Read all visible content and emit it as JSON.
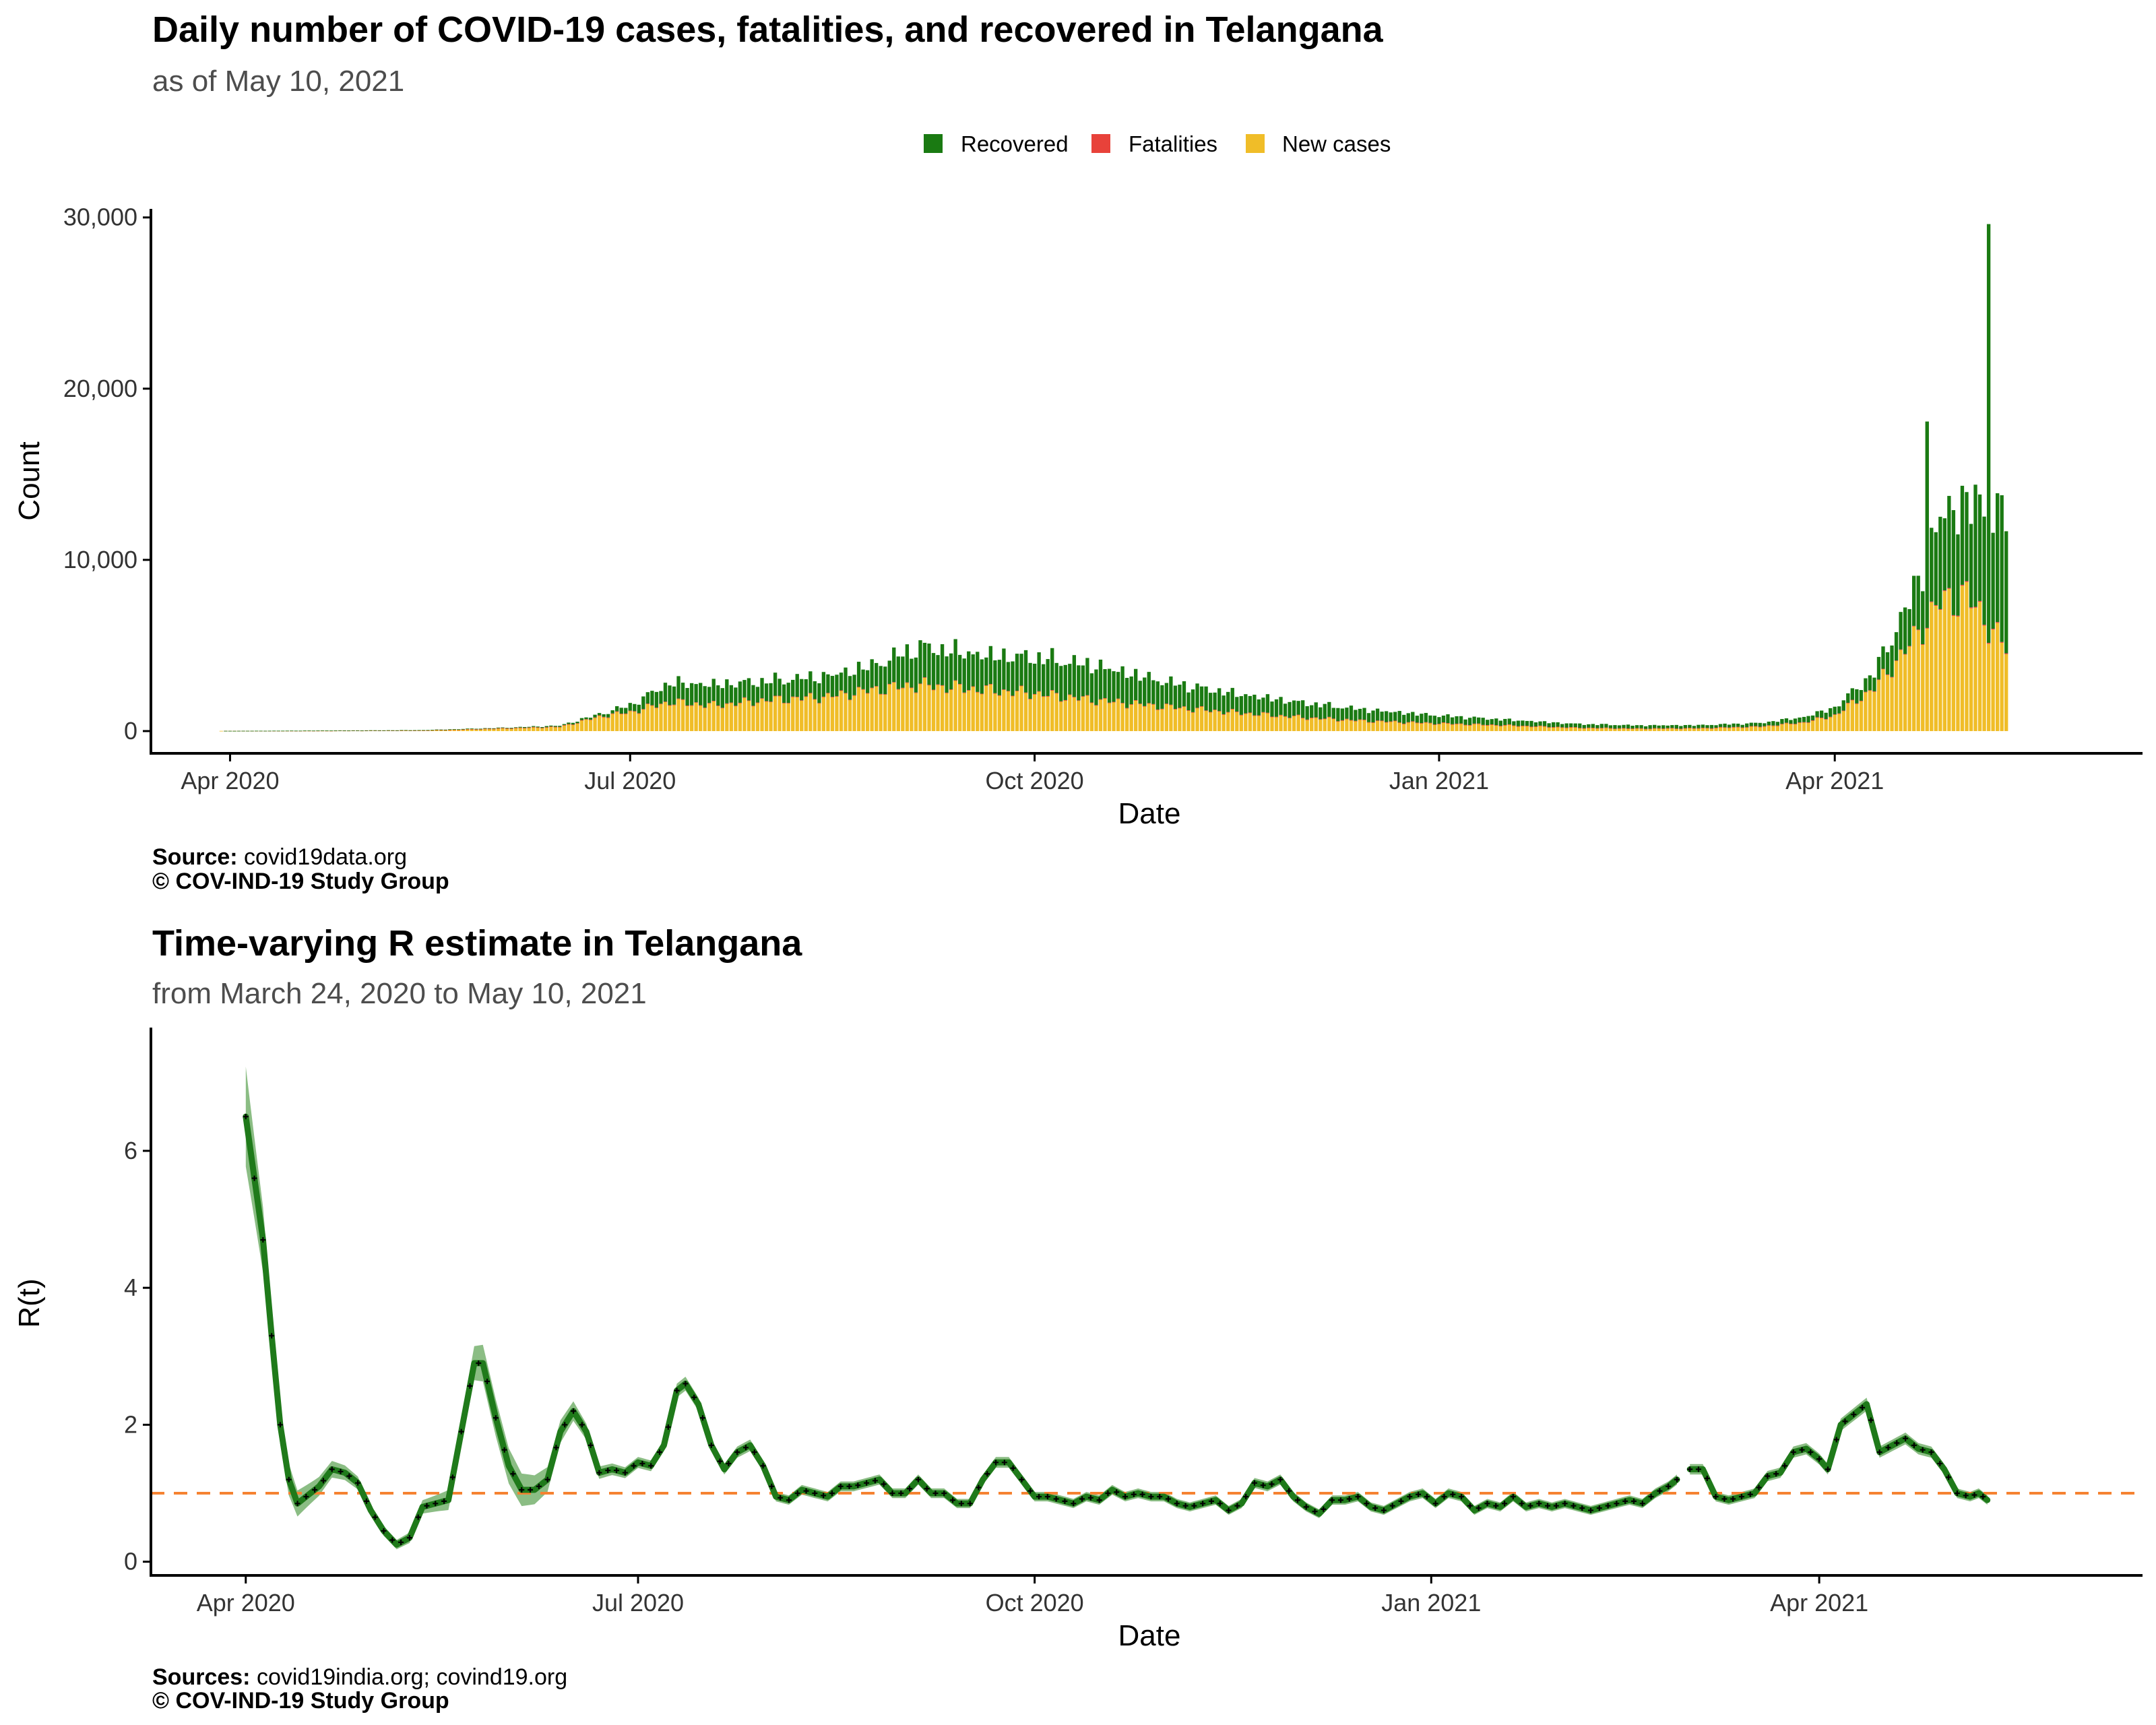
{
  "colors": {
    "recovered": "#1a7a12",
    "fatalities": "#e8423a",
    "new_cases": "#f0bd28",
    "r_line": "#1f7a1a",
    "r_band": "#5aa150",
    "r_marker": "#000000",
    "reference_line": "#f58231"
  },
  "chart_data": [
    {
      "type": "bar",
      "stacked": true,
      "title": "Daily number of COVID-19 cases, fatalities, and recovered in Telangana",
      "subtitle": "as of May 10, 2021",
      "xlabel": "Date",
      "ylabel": "Count",
      "x_range": [
        "2020-03-14",
        "2021-06-10"
      ],
      "x_ticks": [
        {
          "date": "2020-04-01",
          "label": "Apr 2020"
        },
        {
          "date": "2020-07-01",
          "label": "Jul 2020"
        },
        {
          "date": "2020-10-01",
          "label": "Oct 2020"
        },
        {
          "date": "2021-01-01",
          "label": "Jan 2021"
        },
        {
          "date": "2021-04-01",
          "label": "Apr 2021"
        }
      ],
      "ylim": [
        -1300,
        30500
      ],
      "y_ticks": [
        {
          "value": 0,
          "label": "0"
        },
        {
          "value": 10000,
          "label": "10,000"
        },
        {
          "value": 20000,
          "label": "20,000"
        },
        {
          "value": 30000,
          "label": "30,000"
        }
      ],
      "legend_position": "top-center",
      "legend": [
        "Recovered",
        "Fatalities",
        "New cases"
      ],
      "series_keys": [
        "new_cases",
        "fatalities",
        "recovered"
      ],
      "x_start": "2020-03-30",
      "x_end": "2021-05-10",
      "series": [
        {
          "name": "New cases",
          "key": "new_cases",
          "keyframes": [
            [
              "2020-03-30",
              10
            ],
            [
              "2020-04-20",
              20
            ],
            [
              "2020-05-15",
              40
            ],
            [
              "2020-06-01",
              150
            ],
            [
              "2020-06-15",
              250
            ],
            [
              "2020-06-25",
              900
            ],
            [
              "2020-07-01",
              1100
            ],
            [
              "2020-07-10",
              1700
            ],
            [
              "2020-07-20",
              1500
            ],
            [
              "2020-08-01",
              1800
            ],
            [
              "2020-08-15",
              2000
            ],
            [
              "2020-08-25",
              2400
            ],
            [
              "2020-09-05",
              2700
            ],
            [
              "2020-09-20",
              2400
            ],
            [
              "2020-10-01",
              2200
            ],
            [
              "2020-10-15",
              1800
            ],
            [
              "2020-11-01",
              1400
            ],
            [
              "2020-11-15",
              1100
            ],
            [
              "2020-12-01",
              800
            ],
            [
              "2020-12-15",
              600
            ],
            [
              "2021-01-01",
              450
            ],
            [
              "2021-01-15",
              350
            ],
            [
              "2021-02-01",
              200
            ],
            [
              "2021-02-15",
              150
            ],
            [
              "2021-03-01",
              170
            ],
            [
              "2021-03-15",
              260
            ],
            [
              "2021-03-25",
              500
            ],
            [
              "2021-04-01",
              900
            ],
            [
              "2021-04-10",
              2500
            ],
            [
              "2021-04-18",
              5000
            ],
            [
              "2021-04-25",
              7500
            ],
            [
              "2021-05-01",
              7900
            ],
            [
              "2021-05-05",
              6500
            ],
            [
              "2021-05-10",
              4800
            ]
          ]
        },
        {
          "name": "Fatalities",
          "key": "fatalities",
          "keyframes": [
            [
              "2020-03-30",
              0
            ],
            [
              "2020-06-01",
              5
            ],
            [
              "2020-07-01",
              10
            ],
            [
              "2020-08-15",
              12
            ],
            [
              "2020-10-01",
              8
            ],
            [
              "2020-12-01",
              4
            ],
            [
              "2021-03-01",
              2
            ],
            [
              "2021-04-15",
              30
            ],
            [
              "2021-05-01",
              55
            ],
            [
              "2021-05-10",
              50
            ]
          ]
        },
        {
          "name": "Recovered",
          "key": "recovered",
          "keyframes": [
            [
              "2020-03-30",
              0
            ],
            [
              "2020-05-15",
              15
            ],
            [
              "2020-06-01",
              30
            ],
            [
              "2020-06-15",
              60
            ],
            [
              "2020-06-25",
              150
            ],
            [
              "2020-07-01",
              400
            ],
            [
              "2020-07-10",
              1100
            ],
            [
              "2020-07-20",
              1200
            ],
            [
              "2020-08-01",
              1100
            ],
            [
              "2020-08-15",
              1200
            ],
            [
              "2020-08-25",
              1400
            ],
            [
              "2020-09-05",
              2200
            ],
            [
              "2020-09-20",
              2000
            ],
            [
              "2020-10-01",
              2100
            ],
            [
              "2020-10-15",
              2000
            ],
            [
              "2020-11-01",
              1400
            ],
            [
              "2020-11-15",
              1100
            ],
            [
              "2020-12-01",
              850
            ],
            [
              "2020-12-15",
              650
            ],
            [
              "2021-01-01",
              450
            ],
            [
              "2021-01-15",
              330
            ],
            [
              "2021-02-01",
              220
            ],
            [
              "2021-02-15",
              180
            ],
            [
              "2021-03-01",
              170
            ],
            [
              "2021-03-15",
              200
            ],
            [
              "2021-03-25",
              300
            ],
            [
              "2021-04-01",
              450
            ],
            [
              "2021-04-10",
              900
            ],
            [
              "2021-04-18",
              2500
            ],
            [
              "2021-04-25",
              5000
            ],
            [
              "2021-05-01",
              5500
            ],
            [
              "2021-05-05",
              6500
            ],
            [
              "2021-05-10",
              7800
            ]
          ]
        }
      ],
      "notable_values": [
        {
          "date": "2021-04-22",
          "total": 16500
        },
        {
          "date": "2021-05-06",
          "total": 28700
        }
      ],
      "caption": {
        "source_label": "Source:",
        "source_text": " covid19data.org",
        "copyright": "© COV-IND-19 Study Group"
      }
    },
    {
      "type": "line",
      "title": "Time-varying R estimate in Telangana",
      "subtitle": "from March 24, 2020 to May 10, 2021",
      "xlabel": "Date",
      "ylabel": "R(t)",
      "x_range": [
        "2020-03-10",
        "2021-06-15"
      ],
      "x_ticks": [
        {
          "date": "2020-04-01",
          "label": "Apr 2020"
        },
        {
          "date": "2020-07-01",
          "label": "Jul 2020"
        },
        {
          "date": "2020-10-01",
          "label": "Oct 2020"
        },
        {
          "date": "2021-01-01",
          "label": "Jan 2021"
        },
        {
          "date": "2021-04-01",
          "label": "Apr 2021"
        }
      ],
      "ylim": [
        -0.2,
        7.8
      ],
      "y_ticks": [
        {
          "value": 0,
          "label": "0"
        },
        {
          "value": 2,
          "label": "2"
        },
        {
          "value": 4,
          "label": "4"
        },
        {
          "value": 6,
          "label": "6"
        }
      ],
      "reference_line": 1,
      "gap": [
        "2021-02-27",
        "2021-03-02"
      ],
      "points": [
        [
          "2020-04-01",
          6.5
        ],
        [
          "2020-04-03",
          5.6
        ],
        [
          "2020-04-05",
          4.7
        ],
        [
          "2020-04-07",
          3.3
        ],
        [
          "2020-04-09",
          2.0
        ],
        [
          "2020-04-11",
          1.2
        ],
        [
          "2020-04-13",
          0.85
        ],
        [
          "2020-04-15",
          0.95
        ],
        [
          "2020-04-18",
          1.1
        ],
        [
          "2020-04-21",
          1.35
        ],
        [
          "2020-04-24",
          1.3
        ],
        [
          "2020-04-27",
          1.15
        ],
        [
          "2020-04-30",
          0.75
        ],
        [
          "2020-05-03",
          0.45
        ],
        [
          "2020-05-06",
          0.25
        ],
        [
          "2020-05-09",
          0.35
        ],
        [
          "2020-05-12",
          0.8
        ],
        [
          "2020-05-15",
          0.85
        ],
        [
          "2020-05-18",
          0.9
        ],
        [
          "2020-05-21",
          1.9
        ],
        [
          "2020-05-24",
          2.9
        ],
        [
          "2020-05-26",
          2.9
        ],
        [
          "2020-05-29",
          2.1
        ],
        [
          "2020-06-01",
          1.4
        ],
        [
          "2020-06-04",
          1.05
        ],
        [
          "2020-06-07",
          1.05
        ],
        [
          "2020-06-10",
          1.2
        ],
        [
          "2020-06-13",
          1.9
        ],
        [
          "2020-06-16",
          2.2
        ],
        [
          "2020-06-19",
          1.9
        ],
        [
          "2020-06-22",
          1.3
        ],
        [
          "2020-06-25",
          1.35
        ],
        [
          "2020-06-28",
          1.3
        ],
        [
          "2020-07-01",
          1.45
        ],
        [
          "2020-07-04",
          1.4
        ],
        [
          "2020-07-07",
          1.7
        ],
        [
          "2020-07-10",
          2.5
        ],
        [
          "2020-07-12",
          2.6
        ],
        [
          "2020-07-15",
          2.3
        ],
        [
          "2020-07-18",
          1.7
        ],
        [
          "2020-07-21",
          1.35
        ],
        [
          "2020-07-24",
          1.6
        ],
        [
          "2020-07-27",
          1.7
        ],
        [
          "2020-07-30",
          1.4
        ],
        [
          "2020-08-02",
          0.95
        ],
        [
          "2020-08-05",
          0.9
        ],
        [
          "2020-08-08",
          1.05
        ],
        [
          "2020-08-11",
          1.0
        ],
        [
          "2020-08-14",
          0.95
        ],
        [
          "2020-08-17",
          1.1
        ],
        [
          "2020-08-20",
          1.1
        ],
        [
          "2020-08-23",
          1.15
        ],
        [
          "2020-08-26",
          1.2
        ],
        [
          "2020-08-29",
          1.0
        ],
        [
          "2020-09-01",
          1.0
        ],
        [
          "2020-09-04",
          1.2
        ],
        [
          "2020-09-07",
          1.0
        ],
        [
          "2020-09-10",
          1.0
        ],
        [
          "2020-09-13",
          0.85
        ],
        [
          "2020-09-16",
          0.85
        ],
        [
          "2020-09-19",
          1.2
        ],
        [
          "2020-09-22",
          1.45
        ],
        [
          "2020-09-25",
          1.45
        ],
        [
          "2020-09-28",
          1.2
        ],
        [
          "2020-10-01",
          0.95
        ],
        [
          "2020-10-04",
          0.95
        ],
        [
          "2020-10-07",
          0.9
        ],
        [
          "2020-10-10",
          0.85
        ],
        [
          "2020-10-13",
          0.95
        ],
        [
          "2020-10-16",
          0.9
        ],
        [
          "2020-10-19",
          1.05
        ],
        [
          "2020-10-22",
          0.95
        ],
        [
          "2020-10-25",
          1.0
        ],
        [
          "2020-10-28",
          0.95
        ],
        [
          "2020-10-31",
          0.95
        ],
        [
          "2020-11-03",
          0.85
        ],
        [
          "2020-11-06",
          0.8
        ],
        [
          "2020-11-09",
          0.85
        ],
        [
          "2020-11-12",
          0.9
        ],
        [
          "2020-11-15",
          0.75
        ],
        [
          "2020-11-18",
          0.85
        ],
        [
          "2020-11-21",
          1.15
        ],
        [
          "2020-11-24",
          1.1
        ],
        [
          "2020-11-27",
          1.2
        ],
        [
          "2020-11-30",
          0.95
        ],
        [
          "2020-12-03",
          0.8
        ],
        [
          "2020-12-06",
          0.7
        ],
        [
          "2020-12-09",
          0.9
        ],
        [
          "2020-12-12",
          0.9
        ],
        [
          "2020-12-15",
          0.95
        ],
        [
          "2020-12-18",
          0.8
        ],
        [
          "2020-12-21",
          0.75
        ],
        [
          "2020-12-24",
          0.85
        ],
        [
          "2020-12-27",
          0.95
        ],
        [
          "2020-12-30",
          1.0
        ],
        [
          "2021-01-02",
          0.85
        ],
        [
          "2021-01-05",
          1.0
        ],
        [
          "2021-01-08",
          0.95
        ],
        [
          "2021-01-11",
          0.75
        ],
        [
          "2021-01-14",
          0.85
        ],
        [
          "2021-01-17",
          0.8
        ],
        [
          "2021-01-20",
          0.95
        ],
        [
          "2021-01-23",
          0.8
        ],
        [
          "2021-01-26",
          0.85
        ],
        [
          "2021-01-29",
          0.8
        ],
        [
          "2021-02-01",
          0.85
        ],
        [
          "2021-02-04",
          0.8
        ],
        [
          "2021-02-07",
          0.75
        ],
        [
          "2021-02-10",
          0.8
        ],
        [
          "2021-02-13",
          0.85
        ],
        [
          "2021-02-16",
          0.9
        ],
        [
          "2021-02-19",
          0.85
        ],
        [
          "2021-02-22",
          1.0
        ],
        [
          "2021-02-25",
          1.1
        ],
        [
          "2021-02-27",
          1.2
        ],
        [
          "2021-03-02",
          1.35
        ],
        [
          "2021-03-05",
          1.35
        ],
        [
          "2021-03-08",
          0.95
        ],
        [
          "2021-03-11",
          0.9
        ],
        [
          "2021-03-14",
          0.95
        ],
        [
          "2021-03-17",
          1.0
        ],
        [
          "2021-03-20",
          1.25
        ],
        [
          "2021-03-23",
          1.3
        ],
        [
          "2021-03-26",
          1.6
        ],
        [
          "2021-03-29",
          1.65
        ],
        [
          "2021-04-01",
          1.5
        ],
        [
          "2021-04-03",
          1.35
        ],
        [
          "2021-04-06",
          2.0
        ],
        [
          "2021-04-09",
          2.15
        ],
        [
          "2021-04-12",
          2.3
        ],
        [
          "2021-04-15",
          1.6
        ],
        [
          "2021-04-18",
          1.7
        ],
        [
          "2021-04-21",
          1.8
        ],
        [
          "2021-04-24",
          1.65
        ],
        [
          "2021-04-27",
          1.6
        ],
        [
          "2021-04-30",
          1.35
        ],
        [
          "2021-05-03",
          1.0
        ],
        [
          "2021-05-06",
          0.95
        ],
        [
          "2021-05-08",
          1.0
        ],
        [
          "2021-05-10",
          0.9
        ]
      ],
      "caption": {
        "source_label": "Sources:",
        "source_text": " covid19india.org; covind19.org",
        "copyright": "© COV-IND-19 Study Group"
      }
    }
  ]
}
